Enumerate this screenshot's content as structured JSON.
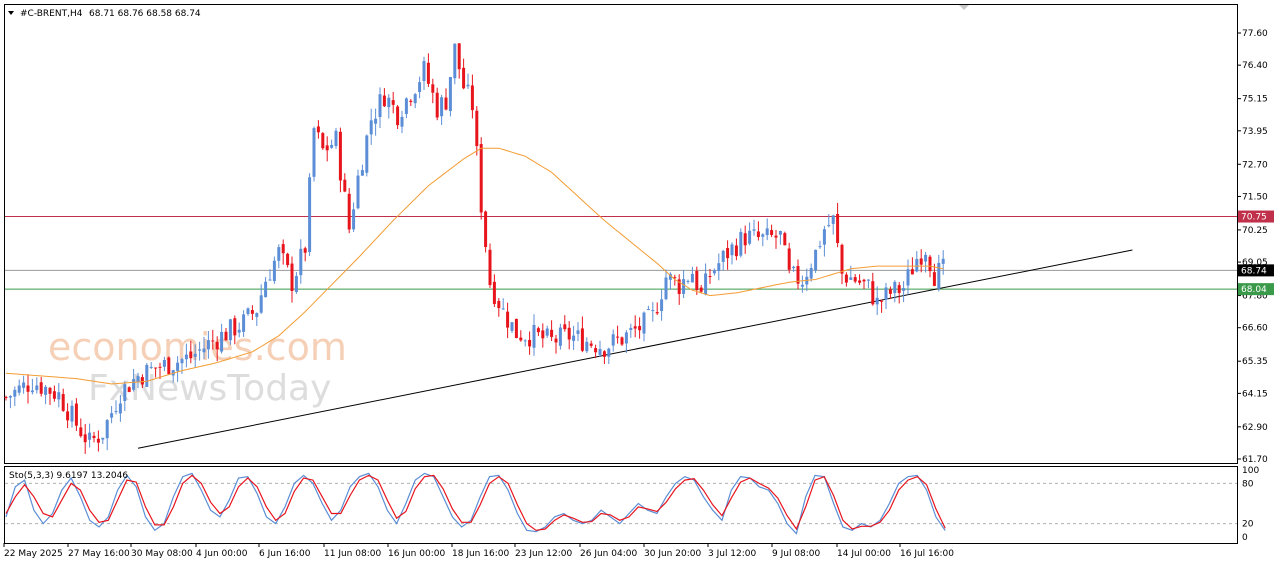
{
  "header": {
    "symbol": "#C-BRENT,H4",
    "ohlc": "68.71 68.76 68.58 68.74",
    "dropdown_icon": "triangle-down-icon"
  },
  "watermark": {
    "line1": "economies.com",
    "line2": "FxNewsToday"
  },
  "price_tags": {
    "resistance": "70.75",
    "current": "68.74",
    "support": "68.04"
  },
  "oscillator": {
    "label": "Sto(5,3,3) 9.6197 13.2046",
    "levels": [
      "100",
      "80",
      "20",
      "0"
    ]
  },
  "colors": {
    "bull": "#5b8ed6",
    "bear": "#e8141c",
    "ma": "#f39c33",
    "resistance_line": "#c0304a",
    "support_line": "#3a9a4a",
    "current_line": "#9a9a9a",
    "trendline": "#000000",
    "stoch_main": "#5b8ed6",
    "stoch_signal": "#e8141c"
  },
  "chart_data": [
    {
      "type": "candlestick",
      "title": "#C-BRENT,H4",
      "y_ticks": [
        "77.60",
        "76.40",
        "75.15",
        "73.95",
        "72.70",
        "71.50",
        "70.25",
        "69.05",
        "67.80",
        "66.60",
        "65.35",
        "64.15",
        "62.90",
        "61.70"
      ],
      "x_ticks": [
        "22 May 2025",
        "27 May 16:00",
        "30 May 08:00",
        "4 Jun 00:00",
        "6 Jun 16:00",
        "11 Jun 08:00",
        "16 Jun 00:00",
        "18 Jun 16:00",
        "23 Jun 12:00",
        "26 Jun 04:00",
        "30 Jun 20:00",
        "3 Jul 12:00",
        "9 Jul 08:00",
        "14 Jul 00:00",
        "16 Jul 16:00"
      ],
      "ylim": [
        61.7,
        78.3
      ],
      "close_path": [
        [
          0,
          64.0
        ],
        [
          6,
          64.6
        ],
        [
          12,
          64.1
        ],
        [
          16,
          63.0
        ],
        [
          19,
          62.3
        ],
        [
          22,
          62.7
        ],
        [
          26,
          64.2
        ],
        [
          30,
          64.8
        ],
        [
          34,
          65.1
        ],
        [
          38,
          65.3
        ],
        [
          42,
          65.5
        ],
        [
          46,
          66.0
        ],
        [
          50,
          66.4
        ],
        [
          54,
          66.8
        ],
        [
          57,
          67.3
        ],
        [
          59,
          68.4
        ],
        [
          62,
          69.4
        ],
        [
          65,
          68.3
        ],
        [
          68,
          69.6
        ],
        [
          70,
          74.0
        ],
        [
          72,
          73.2
        ],
        [
          75,
          73.6
        ],
        [
          78,
          70.3
        ],
        [
          80,
          72.2
        ],
        [
          83,
          74.4
        ],
        [
          86,
          75.3
        ],
        [
          89,
          74.6
        ],
        [
          92,
          75.4
        ],
        [
          95,
          76.2
        ],
        [
          98,
          74.8
        ],
        [
          100,
          75.1
        ],
        [
          102,
          77.0
        ],
        [
          104,
          75.6
        ],
        [
          106,
          74.9
        ],
        [
          108,
          71.2
        ],
        [
          110,
          68.3
        ],
        [
          113,
          67.2
        ],
        [
          116,
          66.4
        ],
        [
          120,
          66.3
        ],
        [
          124,
          66.1
        ],
        [
          128,
          66.3
        ],
        [
          132,
          66.1
        ],
        [
          136,
          65.9
        ],
        [
          140,
          66.2
        ],
        [
          144,
          66.6
        ],
        [
          147,
          67.0
        ],
        [
          150,
          68.5
        ],
        [
          153,
          68.2
        ],
        [
          156,
          68.7
        ],
        [
          158,
          67.8
        ],
        [
          160,
          68.6
        ],
        [
          164,
          69.4
        ],
        [
          168,
          70.0
        ],
        [
          172,
          69.9
        ],
        [
          176,
          70.0
        ],
        [
          178,
          68.5
        ],
        [
          181,
          68.4
        ],
        [
          184,
          69.4
        ],
        [
          186,
          70.3
        ],
        [
          188,
          70.6
        ],
        [
          190,
          68.6
        ],
        [
          193,
          68.4
        ],
        [
          196,
          68.1
        ],
        [
          198,
          67.5
        ],
        [
          201,
          67.9
        ],
        [
          204,
          68.1
        ],
        [
          207,
          69.2
        ],
        [
          209,
          69.6
        ],
        [
          211,
          68.6
        ],
        [
          213,
          68.74
        ]
      ],
      "ma": [
        [
          0,
          64.9
        ],
        [
          8,
          64.8
        ],
        [
          16,
          64.7
        ],
        [
          24,
          64.5
        ],
        [
          32,
          64.6
        ],
        [
          40,
          65.0
        ],
        [
          48,
          65.3
        ],
        [
          56,
          65.7
        ],
        [
          62,
          66.3
        ],
        [
          68,
          67.2
        ],
        [
          74,
          68.2
        ],
        [
          80,
          69.2
        ],
        [
          88,
          70.6
        ],
        [
          96,
          71.9
        ],
        [
          104,
          72.9
        ],
        [
          108,
          73.3
        ],
        [
          112,
          73.3
        ],
        [
          118,
          73.0
        ],
        [
          124,
          72.4
        ],
        [
          130,
          71.5
        ],
        [
          136,
          70.6
        ],
        [
          142,
          69.8
        ],
        [
          148,
          69.0
        ],
        [
          152,
          68.4
        ],
        [
          156,
          68.0
        ],
        [
          160,
          67.8
        ],
        [
          166,
          67.9
        ],
        [
          172,
          68.1
        ],
        [
          178,
          68.3
        ],
        [
          184,
          68.4
        ],
        [
          188,
          68.6
        ],
        [
          192,
          68.8
        ],
        [
          198,
          68.9
        ],
        [
          204,
          68.9
        ],
        [
          210,
          68.9
        ],
        [
          213,
          68.8
        ]
      ],
      "resistance_level": 70.75,
      "support_level": 68.04,
      "current_price": 68.74,
      "trendline": {
        "start": [
          30,
          62.1
        ],
        "end": [
          256,
          69.5
        ]
      }
    },
    {
      "type": "line",
      "title": "Sto(5,3,3)",
      "values_label": "9.6197 13.2046",
      "ylim": [
        0,
        100
      ],
      "levels": [
        80,
        20
      ],
      "series": [
        {
          "name": "main",
          "values": [
            30,
            75,
            85,
            40,
            20,
            35,
            70,
            88,
            60,
            25,
            15,
            30,
            70,
            92,
            75,
            30,
            10,
            20,
            60,
            90,
            95,
            70,
            40,
            30,
            55,
            88,
            90,
            65,
            30,
            20,
            45,
            80,
            92,
            80,
            50,
            25,
            40,
            75,
            90,
            95,
            75,
            40,
            20,
            50,
            85,
            95,
            90,
            60,
            30,
            15,
            25,
            60,
            90,
            92,
            70,
            35,
            10,
            8,
            15,
            30,
            35,
            25,
            20,
            25,
            40,
            30,
            20,
            35,
            50,
            40,
            35,
            60,
            80,
            90,
            85,
            60,
            40,
            25,
            70,
            90,
            88,
            75,
            70,
            50,
            20,
            5,
            60,
            92,
            90,
            50,
            15,
            10,
            20,
            15,
            25,
            50,
            80,
            90,
            92,
            70,
            30,
            9.6
          ]
        },
        {
          "name": "signal",
          "values": [
            35,
            60,
            78,
            60,
            35,
            30,
            55,
            80,
            70,
            40,
            22,
            25,
            55,
            85,
            82,
            45,
            18,
            18,
            45,
            80,
            92,
            80,
            52,
            35,
            45,
            75,
            88,
            75,
            45,
            25,
            35,
            68,
            88,
            85,
            60,
            35,
            35,
            62,
            85,
            92,
            85,
            55,
            28,
            38,
            72,
            90,
            92,
            72,
            42,
            22,
            22,
            48,
            80,
            90,
            80,
            48,
            20,
            10,
            12,
            25,
            33,
            28,
            22,
            23,
            35,
            33,
            25,
            30,
            45,
            42,
            38,
            52,
            72,
            85,
            87,
            70,
            48,
            32,
            58,
            82,
            88,
            80,
            73,
            58,
            32,
            12,
            45,
            85,
            90,
            62,
            25,
            12,
            16,
            16,
            22,
            40,
            70,
            85,
            90,
            78,
            42,
            13.2
          ]
        }
      ]
    }
  ]
}
